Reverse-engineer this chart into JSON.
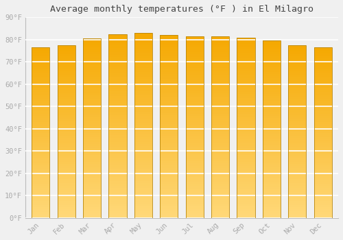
{
  "title": "Average monthly temperatures (°F ) in El Milagro",
  "months": [
    "Jan",
    "Feb",
    "Mar",
    "Apr",
    "May",
    "Jun",
    "Jul",
    "Aug",
    "Sep",
    "Oct",
    "Nov",
    "Dec"
  ],
  "values": [
    76.5,
    77.5,
    80.5,
    82.5,
    83.0,
    82.0,
    81.5,
    81.5,
    81.0,
    79.5,
    77.5,
    76.5
  ],
  "ylim": [
    0,
    90
  ],
  "yticks": [
    0,
    10,
    20,
    30,
    40,
    50,
    60,
    70,
    80,
    90
  ],
  "bar_color_top": "#F5A800",
  "bar_color_bottom": "#FFD878",
  "bar_edge_color": "#B8860B",
  "background_color": "#f0f0f0",
  "grid_color": "#ffffff",
  "title_fontsize": 9.5,
  "tick_fontsize": 7.5,
  "tick_color": "#aaaaaa",
  "font_family": "monospace",
  "bar_width": 0.7,
  "figsize": [
    5.0,
    3.5
  ],
  "dpi": 100
}
